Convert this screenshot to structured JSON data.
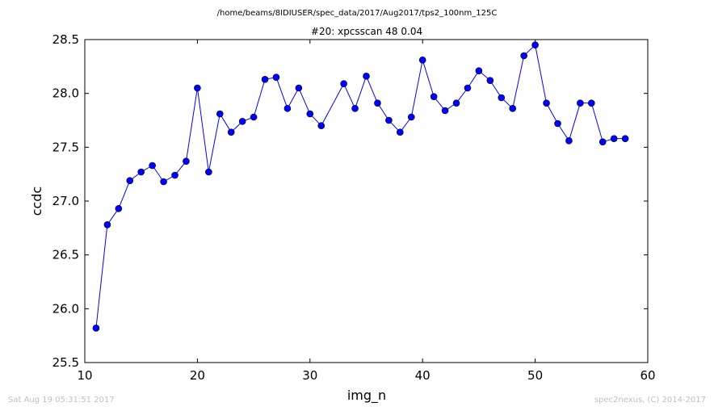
{
  "header": {
    "path": "/home/beams/8IDIUSER/spec_data/2017/Aug2017/tps2_100nm_125C"
  },
  "footer": {
    "timestamp": "Sat Aug 19 05:31:51 2017",
    "credit": "spec2nexus, (C) 2014-2017"
  },
  "chart_data": {
    "type": "line",
    "title": "#20: xpcsscan 48 0.04",
    "xlabel": "img_n",
    "ylabel": "ccdc",
    "xlim": [
      10,
      60
    ],
    "ylim": [
      25.5,
      28.5
    ],
    "xticks": [
      "10",
      "20",
      "30",
      "40",
      "50",
      "60"
    ],
    "yticks": [
      "25.5",
      "26.0",
      "26.5",
      "27.0",
      "27.5",
      "28.0",
      "28.5"
    ],
    "grid": false,
    "line_color": "#0000ff",
    "marker_color": "#0000ff",
    "series": [
      {
        "x": [
          11,
          12,
          13,
          14,
          15,
          16,
          17,
          18,
          19,
          20,
          21,
          22,
          23,
          24,
          25,
          26,
          27,
          28,
          29,
          30,
          31,
          33,
          34,
          35,
          36,
          37,
          38,
          39,
          40,
          41,
          42,
          43,
          44,
          45,
          46,
          47,
          48,
          49,
          50,
          51,
          52,
          53,
          54,
          55,
          56,
          57,
          58
        ],
        "values": [
          25.82,
          26.78,
          26.93,
          27.19,
          27.27,
          27.33,
          27.18,
          27.24,
          27.37,
          28.05,
          27.27,
          27.81,
          27.64,
          27.74,
          27.78,
          28.13,
          28.15,
          27.86,
          28.05,
          27.81,
          27.7,
          28.09,
          27.86,
          28.16,
          27.91,
          27.75,
          27.64,
          27.78,
          28.31,
          27.97,
          27.84,
          27.91,
          28.05,
          28.21,
          28.12,
          27.96,
          27.86,
          28.35,
          28.45,
          27.91,
          27.72,
          27.56,
          27.91,
          27.91,
          27.55,
          27.58,
          27.58
        ]
      }
    ]
  }
}
